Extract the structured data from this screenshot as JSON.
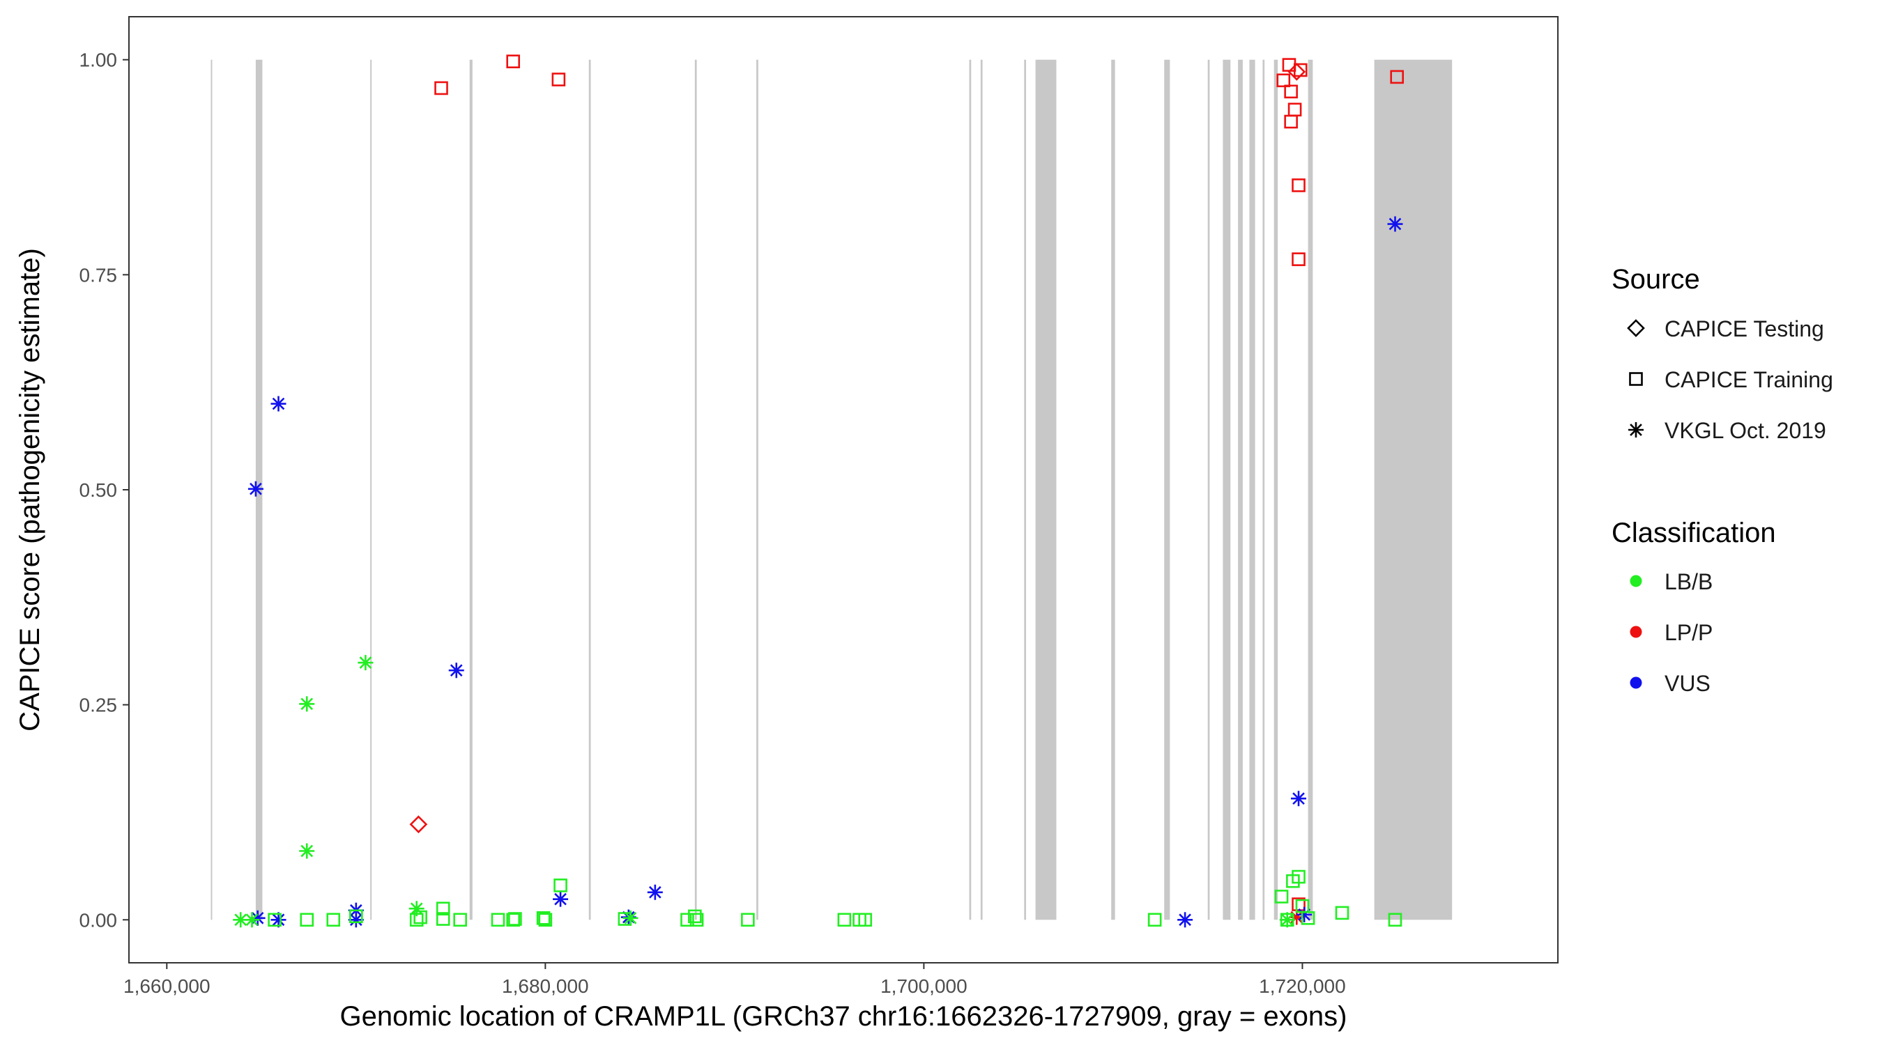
{
  "chart_data": {
    "type": "scatter",
    "xlabel": "Genomic location of CRAMP1L (GRCh37 chr16:1662326-1727909, gray = exons)",
    "ylabel": "CAPICE score (pathogenicity estimate)",
    "xlim": [
      1658000,
      1733500
    ],
    "ylim": [
      -0.05,
      1.05
    ],
    "x_ticks": [
      1660000,
      1680000,
      1700000,
      1720000
    ],
    "x_tick_labels": [
      "1,660,000",
      "1,680,000",
      "1,700,000",
      "1,720,000"
    ],
    "y_ticks": [
      0,
      0.25,
      0.5,
      0.75,
      1
    ],
    "y_tick_labels": [
      "0.00",
      "0.25",
      "0.50",
      "0.75",
      "1.00"
    ],
    "exon_color": "#c8c8c8",
    "exons": [
      [
        1662326,
        1662380
      ],
      [
        1664700,
        1665050
      ],
      [
        1670750,
        1670800
      ],
      [
        1676000,
        1676150
      ],
      [
        1682300,
        1682400
      ],
      [
        1687900,
        1688000
      ],
      [
        1691150,
        1691250
      ],
      [
        1702400,
        1702500
      ],
      [
        1703000,
        1703100
      ],
      [
        1705300,
        1705400
      ],
      [
        1705900,
        1707000
      ],
      [
        1709900,
        1710100
      ],
      [
        1712700,
        1713000
      ],
      [
        1715000,
        1715100
      ],
      [
        1715800,
        1716200
      ],
      [
        1716600,
        1716850
      ],
      [
        1717200,
        1717500
      ],
      [
        1717900,
        1718000
      ],
      [
        1718500,
        1718700
      ],
      [
        1720300,
        1720550
      ],
      [
        1723800,
        1727909
      ]
    ],
    "legend": {
      "source": {
        "title": "Source",
        "entries": [
          {
            "label": "CAPICE Testing",
            "shape": "diamond"
          },
          {
            "label": "CAPICE Training",
            "shape": "square"
          },
          {
            "label": "VKGL Oct. 2019",
            "shape": "asterisk"
          }
        ]
      },
      "classification": {
        "title": "Classification",
        "entries": [
          {
            "label": "LB/B",
            "color": "#22ee22"
          },
          {
            "label": "LP/P",
            "color": "#ee1111"
          },
          {
            "label": "VUS",
            "color": "#1111ee"
          }
        ]
      }
    },
    "series": [
      {
        "name": "LP/P",
        "color": "#ee1111",
        "points": [
          {
            "x": 1674500,
            "y": 0.967,
            "shape": "square"
          },
          {
            "x": 1678300,
            "y": 0.998,
            "shape": "square"
          },
          {
            "x": 1680700,
            "y": 0.977,
            "shape": "square"
          },
          {
            "x": 1719000,
            "y": 0.976,
            "shape": "square"
          },
          {
            "x": 1719300,
            "y": 0.994,
            "shape": "square"
          },
          {
            "x": 1719400,
            "y": 0.963,
            "shape": "square"
          },
          {
            "x": 1719600,
            "y": 0.942,
            "shape": "square"
          },
          {
            "x": 1719400,
            "y": 0.928,
            "shape": "square"
          },
          {
            "x": 1719900,
            "y": 0.988,
            "shape": "square"
          },
          {
            "x": 1719800,
            "y": 0.854,
            "shape": "square"
          },
          {
            "x": 1719800,
            "y": 0.768,
            "shape": "square"
          },
          {
            "x": 1725000,
            "y": 0.98,
            "shape": "square"
          },
          {
            "x": 1719800,
            "y": 0.018,
            "shape": "square"
          },
          {
            "x": 1719700,
            "y": 0.986,
            "shape": "diamond"
          },
          {
            "x": 1673300,
            "y": 0.111,
            "shape": "diamond"
          },
          {
            "x": 1719700,
            "y": 0.003,
            "shape": "asterisk"
          }
        ]
      },
      {
        "name": "VUS",
        "color": "#1111ee",
        "points": [
          {
            "x": 1664700,
            "y": 0.501,
            "shape": "asterisk"
          },
          {
            "x": 1665900,
            "y": 0.6,
            "shape": "asterisk"
          },
          {
            "x": 1675300,
            "y": 0.29,
            "shape": "asterisk"
          },
          {
            "x": 1724900,
            "y": 0.809,
            "shape": "asterisk"
          },
          {
            "x": 1719800,
            "y": 0.141,
            "shape": "asterisk"
          },
          {
            "x": 1680800,
            "y": 0.024,
            "shape": "asterisk"
          },
          {
            "x": 1685800,
            "y": 0.032,
            "shape": "asterisk"
          },
          {
            "x": 1670000,
            "y": 0.011,
            "shape": "asterisk"
          },
          {
            "x": 1664800,
            "y": 0.002,
            "shape": "asterisk"
          },
          {
            "x": 1665900,
            "y": 0.0,
            "shape": "asterisk"
          },
          {
            "x": 1670000,
            "y": 0.0,
            "shape": "asterisk"
          },
          {
            "x": 1684400,
            "y": 0.003,
            "shape": "asterisk"
          },
          {
            "x": 1713800,
            "y": 0.0,
            "shape": "asterisk"
          },
          {
            "x": 1720100,
            "y": 0.006,
            "shape": "asterisk"
          }
        ]
      },
      {
        "name": "LB/B",
        "color": "#22ee22",
        "points": [
          {
            "x": 1667400,
            "y": 0.251,
            "shape": "asterisk"
          },
          {
            "x": 1670500,
            "y": 0.299,
            "shape": "asterisk"
          },
          {
            "x": 1667400,
            "y": 0.08,
            "shape": "asterisk"
          },
          {
            "x": 1673200,
            "y": 0.013,
            "shape": "asterisk"
          },
          {
            "x": 1663900,
            "y": 0.0,
            "shape": "asterisk"
          },
          {
            "x": 1664500,
            "y": 0.0,
            "shape": "asterisk"
          },
          {
            "x": 1684500,
            "y": 0.002,
            "shape": "asterisk"
          },
          {
            "x": 1719200,
            "y": 0.0,
            "shape": "asterisk"
          },
          {
            "x": 1665700,
            "y": 0.0,
            "shape": "square"
          },
          {
            "x": 1667400,
            "y": 0.0,
            "shape": "square"
          },
          {
            "x": 1668800,
            "y": 0.0,
            "shape": "square"
          },
          {
            "x": 1670000,
            "y": 0.004,
            "shape": "square"
          },
          {
            "x": 1673200,
            "y": 0.0,
            "shape": "square"
          },
          {
            "x": 1673400,
            "y": 0.003,
            "shape": "square"
          },
          {
            "x": 1674600,
            "y": 0.013,
            "shape": "square"
          },
          {
            "x": 1674600,
            "y": 0.001,
            "shape": "square"
          },
          {
            "x": 1675500,
            "y": 0.0,
            "shape": "square"
          },
          {
            "x": 1677500,
            "y": 0.0,
            "shape": "square"
          },
          {
            "x": 1678300,
            "y": 0.0,
            "shape": "square"
          },
          {
            "x": 1678400,
            "y": 0.001,
            "shape": "square"
          },
          {
            "x": 1679900,
            "y": 0.002,
            "shape": "square"
          },
          {
            "x": 1680000,
            "y": 0.0,
            "shape": "square"
          },
          {
            "x": 1680800,
            "y": 0.04,
            "shape": "square"
          },
          {
            "x": 1684200,
            "y": 0.001,
            "shape": "square"
          },
          {
            "x": 1687500,
            "y": 0.0,
            "shape": "square"
          },
          {
            "x": 1687900,
            "y": 0.004,
            "shape": "square"
          },
          {
            "x": 1688000,
            "y": 0.0,
            "shape": "square"
          },
          {
            "x": 1690700,
            "y": 0.0,
            "shape": "square"
          },
          {
            "x": 1695800,
            "y": 0.0,
            "shape": "square"
          },
          {
            "x": 1696600,
            "y": 0.0,
            "shape": "square"
          },
          {
            "x": 1696900,
            "y": 0.0,
            "shape": "square"
          },
          {
            "x": 1712200,
            "y": 0.0,
            "shape": "square"
          },
          {
            "x": 1718900,
            "y": 0.027,
            "shape": "square"
          },
          {
            "x": 1719200,
            "y": 0.0,
            "shape": "square"
          },
          {
            "x": 1719500,
            "y": 0.045,
            "shape": "square"
          },
          {
            "x": 1719800,
            "y": 0.05,
            "shape": "square"
          },
          {
            "x": 1720000,
            "y": 0.016,
            "shape": "square"
          },
          {
            "x": 1720300,
            "y": 0.002,
            "shape": "square"
          },
          {
            "x": 1722100,
            "y": 0.008,
            "shape": "square"
          },
          {
            "x": 1724900,
            "y": 0.0,
            "shape": "square"
          }
        ]
      }
    ]
  }
}
